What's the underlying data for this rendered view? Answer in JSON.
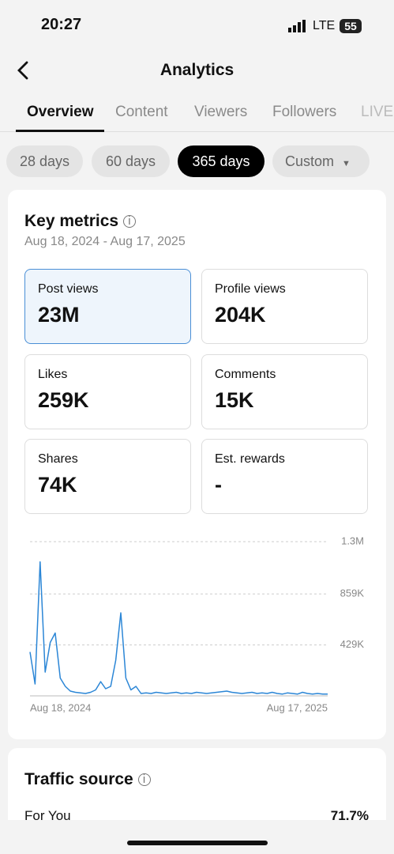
{
  "status": {
    "time": "20:27",
    "network": "LTE",
    "battery": "55"
  },
  "header": {
    "title": "Analytics"
  },
  "tabs": [
    "Overview",
    "Content",
    "Viewers",
    "Followers",
    "LIVE"
  ],
  "filters": [
    "28 days",
    "60 days",
    "365 days",
    "Custom"
  ],
  "key_metrics": {
    "title": "Key metrics",
    "date_range": "Aug 18, 2024 - Aug 17, 2025",
    "metrics": [
      {
        "label": "Post views",
        "value": "23M"
      },
      {
        "label": "Profile views",
        "value": "204K"
      },
      {
        "label": "Likes",
        "value": "259K"
      },
      {
        "label": "Comments",
        "value": "15K"
      },
      {
        "label": "Shares",
        "value": "74K"
      },
      {
        "label": "Est. rewards",
        "value": "-"
      }
    ]
  },
  "chart_data": {
    "type": "line",
    "categories": [
      "Aug 18, 2024",
      null,
      null,
      null,
      null,
      null,
      null,
      null,
      null,
      null,
      null,
      null,
      null,
      null,
      null,
      null,
      null,
      null,
      null,
      null,
      null,
      null,
      null,
      null,
      null,
      null,
      null,
      null,
      null,
      null,
      null,
      null,
      null,
      null,
      null,
      null,
      null,
      null,
      null,
      null,
      null,
      null,
      null,
      null,
      null,
      null,
      null,
      null,
      null,
      null,
      null,
      null,
      null,
      null,
      null,
      null,
      null,
      null,
      null,
      "Aug 17, 2025"
    ],
    "series": [
      {
        "color": "#2b86d6",
        "values": [
          370000,
          100000,
          1130000,
          200000,
          450000,
          530000,
          150000,
          80000,
          40000,
          30000,
          25000,
          20000,
          30000,
          50000,
          120000,
          60000,
          80000,
          300000,
          700000,
          150000,
          50000,
          80000,
          20000,
          25000,
          20000,
          30000,
          25000,
          20000,
          25000,
          30000,
          20000,
          25000,
          20000,
          30000,
          25000,
          20000,
          25000,
          30000,
          35000,
          40000,
          30000,
          25000,
          20000,
          25000,
          30000,
          20000,
          25000,
          20000,
          30000,
          20000,
          15000,
          25000,
          20000,
          15000,
          30000,
          20000,
          15000,
          20000,
          15000,
          15000
        ]
      }
    ],
    "ylim": [
      0,
      1300000
    ],
    "yticks": [
      {
        "value": 1300000,
        "label": "1.3M"
      },
      {
        "value": 859000,
        "label": "859K"
      },
      {
        "value": 429000,
        "label": "429K"
      }
    ],
    "grid": true
  },
  "traffic_source": {
    "title": "Traffic source",
    "rows": [
      {
        "label": "For You",
        "value": "71.7%"
      }
    ]
  }
}
